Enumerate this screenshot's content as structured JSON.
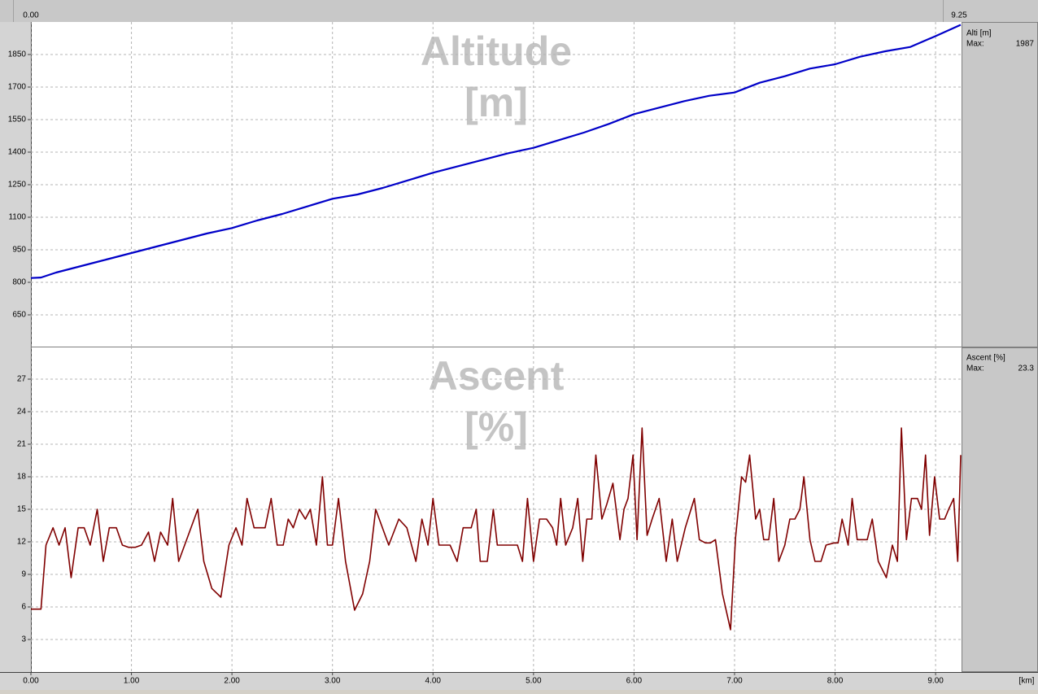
{
  "visible_range": [
    {
      "value": 0,
      "label": "0.00"
    },
    {
      "value": 9.25,
      "label": "9.25"
    }
  ],
  "x_unit": "[km]",
  "chart_data": [
    {
      "type": "line",
      "watermark": [
        "Altitude",
        "[m]"
      ],
      "legend": {
        "name": "Alti [m]",
        "max_label": "Max:",
        "max": 1987
      },
      "x": [
        0,
        0.1,
        0.25,
        0.5,
        0.75,
        1.0,
        1.25,
        1.5,
        1.75,
        2.0,
        2.25,
        2.5,
        2.75,
        3.0,
        3.25,
        3.5,
        3.75,
        4.0,
        4.25,
        4.5,
        4.75,
        5.0,
        5.25,
        5.5,
        5.75,
        6.0,
        6.25,
        6.5,
        6.75,
        7.0,
        7.25,
        7.5,
        7.75,
        8.0,
        8.25,
        8.5,
        8.75,
        9.0,
        9.25
      ],
      "series": [
        {
          "name": "Altitude",
          "color": "#0000c8",
          "values": [
            820,
            822,
            845,
            875,
            905,
            935,
            965,
            995,
            1025,
            1050,
            1085,
            1115,
            1150,
            1185,
            1205,
            1235,
            1270,
            1305,
            1335,
            1365,
            1395,
            1420,
            1455,
            1490,
            1530,
            1575,
            1605,
            1635,
            1660,
            1675,
            1720,
            1750,
            1785,
            1805,
            1840,
            1865,
            1885,
            1935,
            1987
          ]
        }
      ],
      "xlim": [
        0,
        9.25
      ],
      "xticks": [
        0,
        1,
        2,
        3,
        4,
        5,
        6,
        7,
        8,
        9
      ],
      "ylim": [
        500,
        2000
      ],
      "yticks": [
        650,
        800,
        950,
        1100,
        1250,
        1400,
        1550,
        1700,
        1850
      ],
      "grid": true
    },
    {
      "type": "line",
      "watermark": [
        "Ascent",
        "[%]"
      ],
      "legend": {
        "name": "Ascent [%]",
        "max_label": "Max:",
        "max": 23.3
      },
      "x": [
        0,
        0.1,
        0.15,
        0.22,
        0.28,
        0.34,
        0.4,
        0.47,
        0.53,
        0.59,
        0.66,
        0.72,
        0.78,
        0.85,
        0.91,
        0.97,
        1.04,
        1.1,
        1.17,
        1.23,
        1.29,
        1.36,
        1.41,
        1.47,
        1.66,
        1.72,
        1.8,
        1.89,
        1.97,
        2.04,
        2.1,
        2.15,
        2.22,
        2.33,
        2.39,
        2.45,
        2.51,
        2.56,
        2.61,
        2.67,
        2.73,
        2.78,
        2.84,
        2.9,
        2.95,
        3.0,
        3.06,
        3.13,
        3.22,
        3.3,
        3.37,
        3.43,
        3.56,
        3.66,
        3.74,
        3.83,
        3.89,
        3.95,
        4.0,
        4.06,
        4.17,
        4.24,
        4.3,
        4.38,
        4.43,
        4.47,
        4.54,
        4.6,
        4.64,
        4.84,
        4.89,
        4.94,
        5.0,
        5.06,
        5.13,
        5.19,
        5.23,
        5.27,
        5.32,
        5.39,
        5.44,
        5.49,
        5.53,
        5.58,
        5.62,
        5.68,
        5.73,
        5.79,
        5.86,
        5.9,
        5.94,
        5.99,
        6.03,
        6.08,
        6.13,
        6.18,
        6.25,
        6.32,
        6.38,
        6.43,
        6.51,
        6.6,
        6.65,
        6.71,
        6.76,
        6.81,
        6.88,
        6.96,
        7.01,
        7.07,
        7.11,
        7.15,
        7.21,
        7.25,
        7.29,
        7.34,
        7.39,
        7.44,
        7.5,
        7.55,
        7.6,
        7.65,
        7.69,
        7.75,
        7.8,
        7.86,
        7.91,
        7.99,
        8.03,
        8.07,
        8.13,
        8.17,
        8.22,
        8.32,
        8.37,
        8.43,
        8.51,
        8.57,
        8.62,
        8.66,
        8.71,
        8.76,
        8.82,
        8.86,
        8.9,
        8.94,
        8.99,
        9.04,
        9.09,
        9.13,
        9.18,
        9.22,
        9.24,
        9.25
      ],
      "series": [
        {
          "name": "Ascent",
          "color": "#800000",
          "values": [
            5.8,
            5.8,
            11.7,
            13.3,
            11.7,
            13.3,
            8.7,
            13.3,
            13.3,
            11.7,
            15,
            10.2,
            13.3,
            13.3,
            11.7,
            11.5,
            11.5,
            11.7,
            12.9,
            10.2,
            12.9,
            11.7,
            16,
            10.2,
            15,
            10.2,
            7.7,
            6.9,
            11.7,
            13.3,
            11.7,
            16,
            13.3,
            13.3,
            16,
            11.7,
            11.7,
            14.1,
            13.3,
            15,
            14.1,
            15,
            11.7,
            18,
            11.7,
            11.7,
            16,
            10.2,
            5.7,
            7.2,
            10.2,
            15,
            11.7,
            14.1,
            13.3,
            10.2,
            14.1,
            11.7,
            16,
            11.7,
            11.7,
            10.2,
            13.3,
            13.3,
            15,
            10.2,
            10.2,
            15,
            11.7,
            11.7,
            10.2,
            16,
            10.2,
            14.1,
            14.1,
            13.3,
            11.7,
            16,
            11.7,
            13.3,
            16,
            10.2,
            14.1,
            14.1,
            20,
            14.1,
            15.5,
            17.4,
            12.2,
            15,
            16,
            20,
            12.2,
            22.5,
            12.6,
            14.1,
            16,
            10.2,
            14.1,
            10.2,
            13.3,
            16,
            12.2,
            11.9,
            11.9,
            12.2,
            7.2,
            3.9,
            12.4,
            18,
            17.5,
            20,
            14.1,
            15,
            12.2,
            12.2,
            16,
            10.2,
            11.7,
            14.1,
            14.1,
            15,
            18,
            12.2,
            10.2,
            10.2,
            11.7,
            11.9,
            11.9,
            14.1,
            11.7,
            16,
            12.2,
            12.2,
            14.1,
            10.2,
            8.7,
            11.7,
            10.2,
            22.5,
            12.2,
            16,
            16,
            15,
            20,
            12.6,
            18,
            14.1,
            14.1,
            15,
            16,
            10.2,
            16.6,
            20
          ]
        }
      ],
      "xlim": [
        0,
        9.25
      ],
      "xticks": [
        {
          "value": 0,
          "label": "0.00"
        },
        {
          "value": 1,
          "label": "1.00"
        },
        {
          "value": 2,
          "label": "2.00"
        },
        {
          "value": 3,
          "label": "3.00"
        },
        {
          "value": 4,
          "label": "4.00"
        },
        {
          "value": 5,
          "label": "5.00"
        },
        {
          "value": 6,
          "label": "6.00"
        },
        {
          "value": 7,
          "label": "7.00"
        },
        {
          "value": 8,
          "label": "8.00"
        },
        {
          "value": 9,
          "label": "9.00"
        }
      ],
      "ylim": [
        0,
        30
      ],
      "yticks": [
        3,
        6,
        9,
        12,
        15,
        18,
        21,
        24,
        27
      ],
      "grid": true
    }
  ]
}
